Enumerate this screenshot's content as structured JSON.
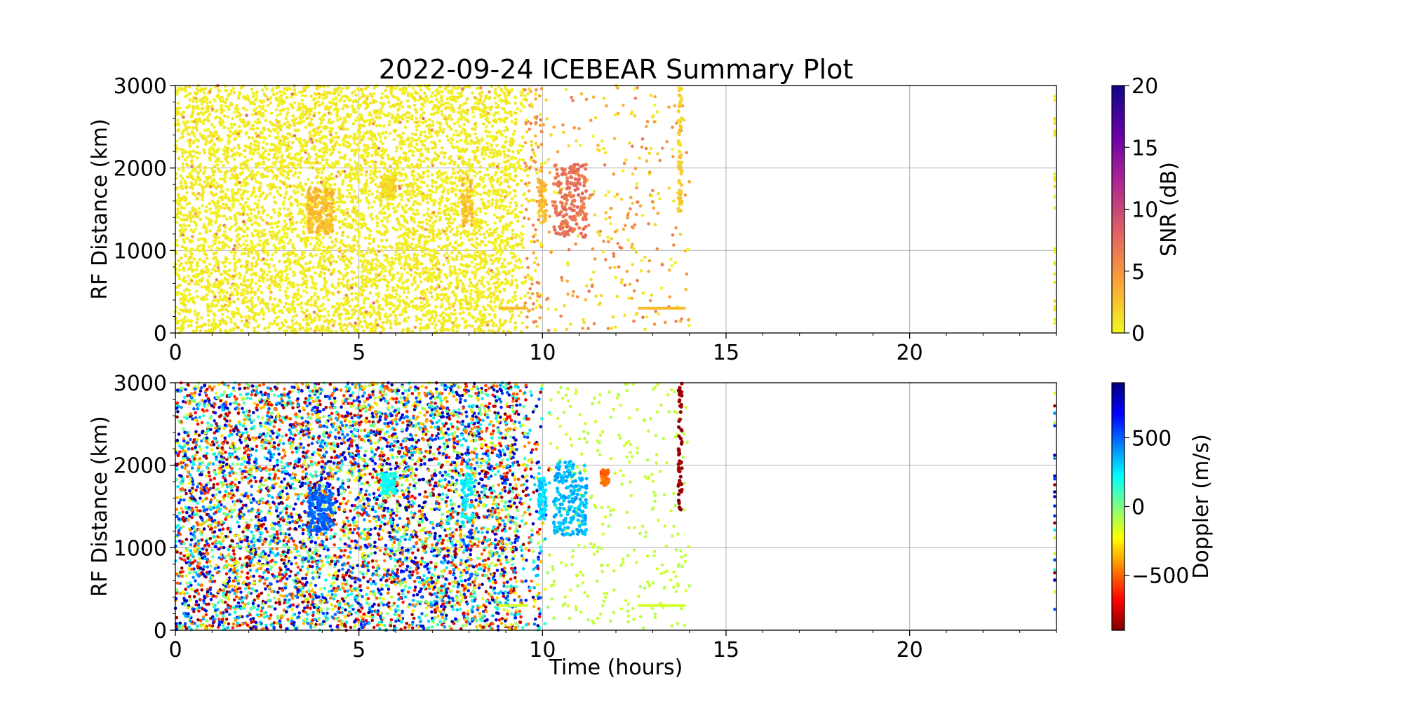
{
  "figure": {
    "title": "2022-09-24 ICEBEAR Summary Plot",
    "xlabel": "Time (hours)"
  },
  "chart_data": [
    {
      "type": "scatter",
      "name": "snr-panel",
      "ylabel": "RF Distance (km)",
      "xlim": [
        0,
        24
      ],
      "ylim": [
        0,
        3000
      ],
      "xticks": [
        0,
        5,
        10,
        15,
        20
      ],
      "yticks": [
        0,
        1000,
        2000,
        3000
      ],
      "grid": true,
      "color_quantity": "snr",
      "colorbar": {
        "label": "SNR (dB)",
        "range": [
          0,
          20
        ],
        "ticks": [
          0,
          5,
          10,
          15,
          20
        ],
        "colormap": "plasma_r",
        "stops": [
          "#f0f921",
          "#fca636",
          "#e16462",
          "#b12a90",
          "#6a00a8",
          "#0d0887"
        ]
      },
      "clusters": [
        {
          "x": [
            3.6,
            4.3
          ],
          "y": [
            1200,
            1750
          ],
          "value": 3.0
        },
        {
          "x": [
            5.6,
            6.0
          ],
          "y": [
            1650,
            1900
          ],
          "value": 1.5
        },
        {
          "x": [
            7.8,
            8.1
          ],
          "y": [
            1300,
            1900
          ],
          "value": 3.0
        },
        {
          "x": [
            9.9,
            10.1
          ],
          "y": [
            1350,
            1850
          ],
          "value": 3.0
        },
        {
          "x": [
            10.3,
            11.2
          ],
          "y": [
            1150,
            2050
          ],
          "value": 7.0
        },
        {
          "x": [
            13.7,
            13.8
          ],
          "y": [
            1450,
            3000
          ],
          "value": 2.0
        }
      ],
      "streaks": [
        {
          "x": [
            8.8,
            9.6
          ],
          "y": 300,
          "value": 3.0
        },
        {
          "x": [
            12.6,
            13.9
          ],
          "y": 300,
          "value": 3.0
        }
      ]
    },
    {
      "type": "scatter",
      "name": "doppler-panel",
      "ylabel": "RF Distance (km)",
      "xlim": [
        0,
        24
      ],
      "ylim": [
        0,
        3000
      ],
      "xticks": [
        0,
        5,
        10,
        15,
        20
      ],
      "yticks": [
        0,
        1000,
        2000,
        3000
      ],
      "grid": true,
      "color_quantity": "doppler",
      "colorbar": {
        "label": "Doppler (m/s)",
        "range": [
          -900,
          900
        ],
        "ticks": [
          -500,
          0,
          500
        ],
        "tick_labels": [
          "−500",
          "0",
          "500"
        ],
        "colormap": "jet_r",
        "stops": [
          "#7f0000",
          "#ff0000",
          "#ff8000",
          "#ffff00",
          "#80ff80",
          "#00ffff",
          "#0080ff",
          "#0000ff",
          "#00007f"
        ]
      },
      "clusters": [
        {
          "x": [
            3.6,
            4.3
          ],
          "y": [
            1200,
            1750
          ],
          "value": 500
        },
        {
          "x": [
            5.6,
            6.0
          ],
          "y": [
            1650,
            1900
          ],
          "value": 200
        },
        {
          "x": [
            7.8,
            8.1
          ],
          "y": [
            1300,
            1900
          ],
          "value": 250
        },
        {
          "x": [
            9.9,
            10.1
          ],
          "y": [
            1350,
            1850
          ],
          "value": 300
        },
        {
          "x": [
            10.3,
            11.2
          ],
          "y": [
            1150,
            2050
          ],
          "value": 350
        },
        {
          "x": [
            11.6,
            11.8
          ],
          "y": [
            1750,
            1950
          ],
          "value": -500
        },
        {
          "x": [
            13.7,
            13.8
          ],
          "y": [
            1450,
            3000
          ],
          "value": -850
        }
      ],
      "streaks": [
        {
          "x": [
            8.8,
            9.6
          ],
          "y": 300,
          "value": -150
        },
        {
          "x": [
            12.6,
            13.9
          ],
          "y": 300,
          "value": -150
        }
      ]
    }
  ]
}
